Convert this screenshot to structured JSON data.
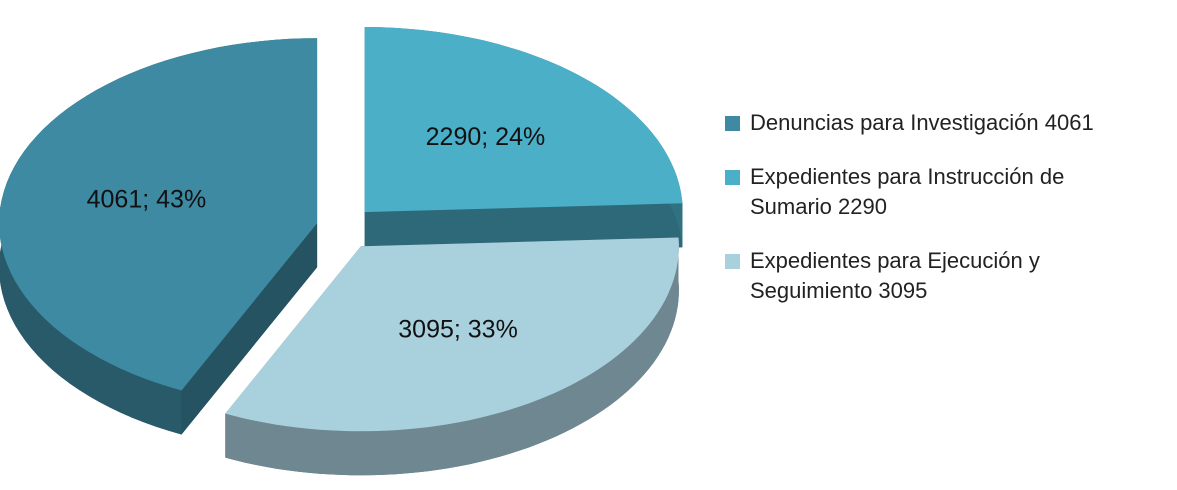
{
  "chart_data": {
    "type": "pie3d",
    "categories": [
      "Denuncias para Investigación 4061",
      "Expedientes para Instrucción de Sumario 2290",
      "Expedientes para Ejecución y Seguimiento 3095"
    ],
    "values": [
      4061,
      2290,
      3095
    ],
    "value_labels": [
      "4061; 43%",
      "2290; 24%",
      "3095; 33%"
    ],
    "colors": [
      "#3d8aa2",
      "#4bafc8",
      "#a9d0dd"
    ],
    "legend": "right"
  }
}
